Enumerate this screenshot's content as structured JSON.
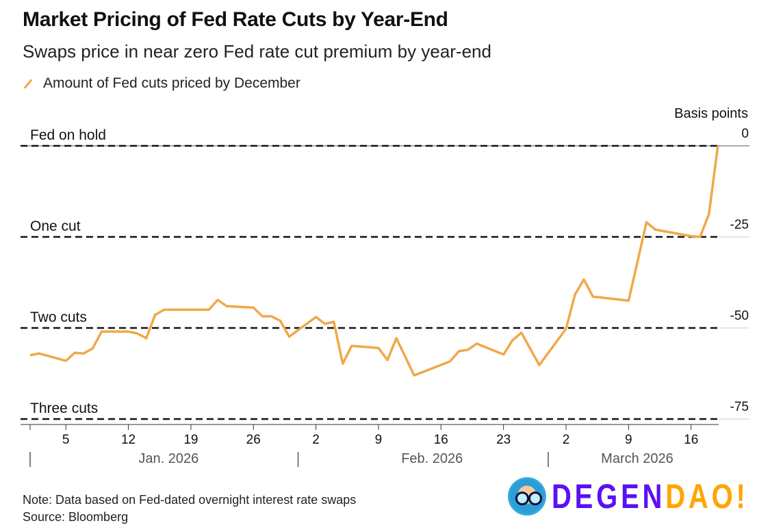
{
  "title": "Market Pricing of Fed Rate Cuts by Year-End",
  "subtitle": "Swaps price in near zero Fed rate cut premium by year-end",
  "legend": "Amount of Fed cuts priced by December",
  "note": "Note: Data based on Fed-dated overnight interest rate swaps",
  "source": "Source: Bloomberg",
  "logo": {
    "part1": "DEGEN",
    "part2": "DAO!",
    "color1": "#5a10f5",
    "color2": "#ffa500"
  },
  "chart_data": {
    "type": "line",
    "ylabel": "Basis points",
    "ylim": [
      -78,
      0
    ],
    "yticks": [
      0,
      -25,
      -50,
      -75
    ],
    "reference_lines": [
      {
        "value": 0,
        "label": "Fed on hold"
      },
      {
        "value": -25,
        "label": "One cut"
      },
      {
        "value": -50,
        "label": "Two cuts"
      },
      {
        "value": -75,
        "label": "Three cuts"
      }
    ],
    "xlim": [
      "2026-01-01",
      "2026-03-19"
    ],
    "xticks": [
      {
        "date": "2026-01-05",
        "label": "5"
      },
      {
        "date": "2026-01-12",
        "label": "12"
      },
      {
        "date": "2026-01-19",
        "label": "19"
      },
      {
        "date": "2026-01-26",
        "label": "26"
      },
      {
        "date": "2026-02-02",
        "label": "2"
      },
      {
        "date": "2026-02-09",
        "label": "9"
      },
      {
        "date": "2026-02-16",
        "label": "16"
      },
      {
        "date": "2026-02-23",
        "label": "23"
      },
      {
        "date": "2026-03-02",
        "label": "2"
      },
      {
        "date": "2026-03-09",
        "label": "9"
      },
      {
        "date": "2026-03-16",
        "label": "16"
      }
    ],
    "month_labels": [
      {
        "date": "2026-01-01",
        "label": "Jan. 2026"
      },
      {
        "date": "2026-02-01",
        "label": "Feb. 2026"
      },
      {
        "date": "2026-03-01",
        "label": "March 2026"
      }
    ],
    "color": "#f0a848",
    "grid": false,
    "legend_position": "top-left",
    "series": [
      {
        "name": "Amount of Fed cuts priced by December",
        "points": [
          [
            "2026-01-01",
            -57.5
          ],
          [
            "2026-01-02",
            -57
          ],
          [
            "2026-01-05",
            -59
          ],
          [
            "2026-01-06",
            -56.8
          ],
          [
            "2026-01-07",
            -57
          ],
          [
            "2026-01-08",
            -55.6
          ],
          [
            "2026-01-09",
            -51
          ],
          [
            "2026-01-12",
            -51
          ],
          [
            "2026-01-13",
            -51.5
          ],
          [
            "2026-01-14",
            -52.8
          ],
          [
            "2026-01-15",
            -46.4
          ],
          [
            "2026-01-16",
            -45
          ],
          [
            "2026-01-20",
            -45
          ],
          [
            "2026-01-21",
            -45
          ],
          [
            "2026-01-22",
            -42.3
          ],
          [
            "2026-01-23",
            -44
          ],
          [
            "2026-01-26",
            -44.4
          ],
          [
            "2026-01-27",
            -46.8
          ],
          [
            "2026-01-28",
            -46.8
          ],
          [
            "2026-01-29",
            -48
          ],
          [
            "2026-01-30",
            -52.4
          ],
          [
            "2026-02-02",
            -47
          ],
          [
            "2026-02-03",
            -48.9
          ],
          [
            "2026-02-04",
            -48.3
          ],
          [
            "2026-02-05",
            -59.8
          ],
          [
            "2026-02-06",
            -54.9
          ],
          [
            "2026-02-09",
            -55.5
          ],
          [
            "2026-02-10",
            -58.8
          ],
          [
            "2026-02-11",
            -52.8
          ],
          [
            "2026-02-13",
            -63
          ],
          [
            "2026-02-17",
            -59.2
          ],
          [
            "2026-02-18",
            -56.4
          ],
          [
            "2026-02-19",
            -56
          ],
          [
            "2026-02-20",
            -54.3
          ],
          [
            "2026-02-23",
            -57.3
          ],
          [
            "2026-02-24",
            -53.4
          ],
          [
            "2026-02-25",
            -51.3
          ],
          [
            "2026-02-27",
            -60.2
          ],
          [
            "2026-03-02",
            -50.2
          ],
          [
            "2026-03-03",
            -40.8
          ],
          [
            "2026-03-04",
            -36.7
          ],
          [
            "2026-03-05",
            -41.4
          ],
          [
            "2026-03-09",
            -42.5
          ],
          [
            "2026-03-10",
            -31.8
          ],
          [
            "2026-03-11",
            -21
          ],
          [
            "2026-03-12",
            -23
          ],
          [
            "2026-03-16",
            -24.8
          ],
          [
            "2026-03-17",
            -25
          ],
          [
            "2026-03-18",
            -18.8
          ],
          [
            "2026-03-19",
            0
          ]
        ]
      }
    ]
  }
}
